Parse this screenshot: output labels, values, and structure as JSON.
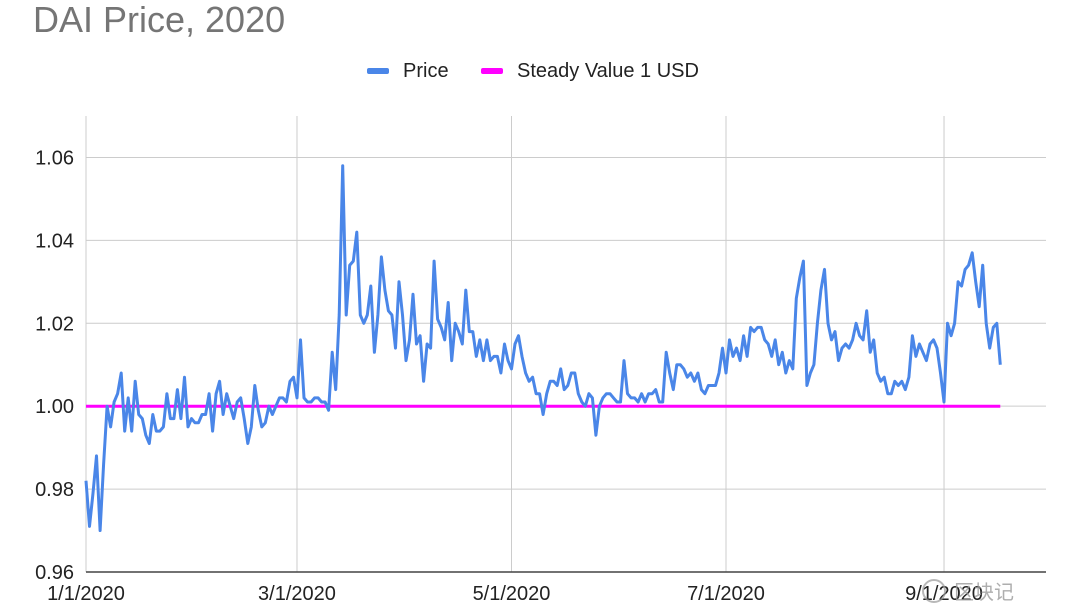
{
  "chart_data": {
    "type": "line",
    "title": "DAI Price, 2020",
    "xlabel": "",
    "ylabel": "",
    "ylim": [
      0.96,
      1.07
    ],
    "yticks": [
      "0.96",
      "0.98",
      "1.00",
      "1.02",
      "1.04",
      "1.06"
    ],
    "xticks": [
      "1/1/2020",
      "3/1/2020",
      "5/1/2020",
      "7/1/2020",
      "9/1/2020"
    ],
    "xlim": [
      "2020-01-01",
      "2020-09-30"
    ],
    "grid": true,
    "legend_position": "top",
    "series": [
      {
        "name": "Price",
        "color": "#4a86e8",
        "points": [
          [
            "2020-01-01",
            0.982
          ],
          [
            "2020-01-02",
            0.971
          ],
          [
            "2020-01-03",
            0.979
          ],
          [
            "2020-01-04",
            0.988
          ],
          [
            "2020-01-05",
            0.97
          ],
          [
            "2020-01-06",
            0.986
          ],
          [
            "2020-01-07",
            1.0
          ],
          [
            "2020-01-08",
            0.995
          ],
          [
            "2020-01-09",
            1.001
          ],
          [
            "2020-01-10",
            1.003
          ],
          [
            "2020-01-11",
            1.008
          ],
          [
            "2020-01-12",
            0.994
          ],
          [
            "2020-01-13",
            1.002
          ],
          [
            "2020-01-14",
            0.994
          ],
          [
            "2020-01-15",
            1.006
          ],
          [
            "2020-01-16",
            0.998
          ],
          [
            "2020-01-17",
            0.997
          ],
          [
            "2020-01-18",
            0.993
          ],
          [
            "2020-01-19",
            0.991
          ],
          [
            "2020-01-20",
            0.998
          ],
          [
            "2020-01-21",
            0.994
          ],
          [
            "2020-01-22",
            0.994
          ],
          [
            "2020-01-23",
            0.995
          ],
          [
            "2020-01-24",
            1.003
          ],
          [
            "2020-01-25",
            0.997
          ],
          [
            "2020-01-26",
            0.997
          ],
          [
            "2020-01-27",
            1.004
          ],
          [
            "2020-01-28",
            0.997
          ],
          [
            "2020-01-29",
            1.007
          ],
          [
            "2020-01-30",
            0.995
          ],
          [
            "2020-01-31",
            0.997
          ],
          [
            "2020-02-01",
            0.996
          ],
          [
            "2020-02-02",
            0.996
          ],
          [
            "2020-02-03",
            0.998
          ],
          [
            "2020-02-04",
            0.998
          ],
          [
            "2020-02-05",
            1.003
          ],
          [
            "2020-02-06",
            0.994
          ],
          [
            "2020-02-07",
            1.003
          ],
          [
            "2020-02-08",
            1.006
          ],
          [
            "2020-02-09",
            0.998
          ],
          [
            "2020-02-10",
            1.003
          ],
          [
            "2020-02-11",
            1.0
          ],
          [
            "2020-02-12",
            0.997
          ],
          [
            "2020-02-13",
            1.001
          ],
          [
            "2020-02-14",
            1.002
          ],
          [
            "2020-02-15",
            0.997
          ],
          [
            "2020-02-16",
            0.991
          ],
          [
            "2020-02-17",
            0.995
          ],
          [
            "2020-02-18",
            1.005
          ],
          [
            "2020-02-19",
            0.999
          ],
          [
            "2020-02-20",
            0.995
          ],
          [
            "2020-02-21",
            0.996
          ],
          [
            "2020-02-22",
            1.0
          ],
          [
            "2020-02-23",
            0.998
          ],
          [
            "2020-02-24",
            1.0
          ],
          [
            "2020-02-25",
            1.002
          ],
          [
            "2020-02-26",
            1.002
          ],
          [
            "2020-02-27",
            1.001
          ],
          [
            "2020-02-28",
            1.006
          ],
          [
            "2020-02-29",
            1.007
          ],
          [
            "2020-03-01",
            1.002
          ],
          [
            "2020-03-02",
            1.016
          ],
          [
            "2020-03-03",
            1.002
          ],
          [
            "2020-03-04",
            1.001
          ],
          [
            "2020-03-05",
            1.001
          ],
          [
            "2020-03-06",
            1.002
          ],
          [
            "2020-03-07",
            1.002
          ],
          [
            "2020-03-08",
            1.001
          ],
          [
            "2020-03-09",
            1.001
          ],
          [
            "2020-03-10",
            0.999
          ],
          [
            "2020-03-11",
            1.013
          ],
          [
            "2020-03-12",
            1.004
          ],
          [
            "2020-03-13",
            1.022
          ],
          [
            "2020-03-14",
            1.058
          ],
          [
            "2020-03-15",
            1.022
          ],
          [
            "2020-03-16",
            1.034
          ],
          [
            "2020-03-17",
            1.035
          ],
          [
            "2020-03-18",
            1.042
          ],
          [
            "2020-03-19",
            1.022
          ],
          [
            "2020-03-20",
            1.02
          ],
          [
            "2020-03-21",
            1.022
          ],
          [
            "2020-03-22",
            1.029
          ],
          [
            "2020-03-23",
            1.013
          ],
          [
            "2020-03-24",
            1.022
          ],
          [
            "2020-03-25",
            1.036
          ],
          [
            "2020-03-26",
            1.028
          ],
          [
            "2020-03-27",
            1.023
          ],
          [
            "2020-03-28",
            1.022
          ],
          [
            "2020-03-29",
            1.014
          ],
          [
            "2020-03-30",
            1.03
          ],
          [
            "2020-03-31",
            1.022
          ],
          [
            "2020-04-01",
            1.011
          ],
          [
            "2020-04-02",
            1.016
          ],
          [
            "2020-04-03",
            1.027
          ],
          [
            "2020-04-04",
            1.015
          ],
          [
            "2020-04-05",
            1.017
          ],
          [
            "2020-04-06",
            1.006
          ],
          [
            "2020-04-07",
            1.015
          ],
          [
            "2020-04-08",
            1.014
          ],
          [
            "2020-04-09",
            1.035
          ],
          [
            "2020-04-10",
            1.021
          ],
          [
            "2020-04-11",
            1.019
          ],
          [
            "2020-04-12",
            1.016
          ],
          [
            "2020-04-13",
            1.025
          ],
          [
            "2020-04-14",
            1.011
          ],
          [
            "2020-04-15",
            1.02
          ],
          [
            "2020-04-16",
            1.018
          ],
          [
            "2020-04-17",
            1.015
          ],
          [
            "2020-04-18",
            1.028
          ],
          [
            "2020-04-19",
            1.018
          ],
          [
            "2020-04-20",
            1.018
          ],
          [
            "2020-04-21",
            1.012
          ],
          [
            "2020-04-22",
            1.016
          ],
          [
            "2020-04-23",
            1.011
          ],
          [
            "2020-04-24",
            1.016
          ],
          [
            "2020-04-25",
            1.011
          ],
          [
            "2020-04-26",
            1.012
          ],
          [
            "2020-04-27",
            1.012
          ],
          [
            "2020-04-28",
            1.008
          ],
          [
            "2020-04-29",
            1.015
          ],
          [
            "2020-04-30",
            1.011
          ],
          [
            "2020-05-01",
            1.009
          ],
          [
            "2020-05-02",
            1.015
          ],
          [
            "2020-05-03",
            1.017
          ],
          [
            "2020-05-04",
            1.012
          ],
          [
            "2020-05-05",
            1.008
          ],
          [
            "2020-05-06",
            1.006
          ],
          [
            "2020-05-07",
            1.007
          ],
          [
            "2020-05-08",
            1.003
          ],
          [
            "2020-05-09",
            1.003
          ],
          [
            "2020-05-10",
            0.998
          ],
          [
            "2020-05-11",
            1.003
          ],
          [
            "2020-05-12",
            1.006
          ],
          [
            "2020-05-13",
            1.006
          ],
          [
            "2020-05-14",
            1.005
          ],
          [
            "2020-05-15",
            1.009
          ],
          [
            "2020-05-16",
            1.004
          ],
          [
            "2020-05-17",
            1.005
          ],
          [
            "2020-05-18",
            1.008
          ],
          [
            "2020-05-19",
            1.008
          ],
          [
            "2020-05-20",
            1.003
          ],
          [
            "2020-05-21",
            1.001
          ],
          [
            "2020-05-22",
            1.0
          ],
          [
            "2020-05-23",
            1.003
          ],
          [
            "2020-05-24",
            1.002
          ],
          [
            "2020-05-25",
            0.993
          ],
          [
            "2020-05-26",
            1.0
          ],
          [
            "2020-05-27",
            1.002
          ],
          [
            "2020-05-28",
            1.003
          ],
          [
            "2020-05-29",
            1.003
          ],
          [
            "2020-05-30",
            1.002
          ],
          [
            "2020-05-31",
            1.001
          ],
          [
            "2020-06-01",
            1.001
          ],
          [
            "2020-06-02",
            1.011
          ],
          [
            "2020-06-03",
            1.003
          ],
          [
            "2020-06-04",
            1.002
          ],
          [
            "2020-06-05",
            1.002
          ],
          [
            "2020-06-06",
            1.001
          ],
          [
            "2020-06-07",
            1.003
          ],
          [
            "2020-06-08",
            1.001
          ],
          [
            "2020-06-09",
            1.003
          ],
          [
            "2020-06-10",
            1.003
          ],
          [
            "2020-06-11",
            1.004
          ],
          [
            "2020-06-12",
            1.001
          ],
          [
            "2020-06-13",
            1.001
          ],
          [
            "2020-06-14",
            1.013
          ],
          [
            "2020-06-15",
            1.008
          ],
          [
            "2020-06-16",
            1.004
          ],
          [
            "2020-06-17",
            1.01
          ],
          [
            "2020-06-18",
            1.01
          ],
          [
            "2020-06-19",
            1.009
          ],
          [
            "2020-06-20",
            1.007
          ],
          [
            "2020-06-21",
            1.008
          ],
          [
            "2020-06-22",
            1.006
          ],
          [
            "2020-06-23",
            1.008
          ],
          [
            "2020-06-24",
            1.004
          ],
          [
            "2020-06-25",
            1.003
          ],
          [
            "2020-06-26",
            1.005
          ],
          [
            "2020-06-27",
            1.005
          ],
          [
            "2020-06-28",
            1.005
          ],
          [
            "2020-06-29",
            1.008
          ],
          [
            "2020-06-30",
            1.014
          ],
          [
            "2020-07-01",
            1.008
          ],
          [
            "2020-07-02",
            1.016
          ],
          [
            "2020-07-03",
            1.012
          ],
          [
            "2020-07-04",
            1.014
          ],
          [
            "2020-07-05",
            1.011
          ],
          [
            "2020-07-06",
            1.017
          ],
          [
            "2020-07-07",
            1.012
          ],
          [
            "2020-07-08",
            1.019
          ],
          [
            "2020-07-09",
            1.018
          ],
          [
            "2020-07-10",
            1.019
          ],
          [
            "2020-07-11",
            1.019
          ],
          [
            "2020-07-12",
            1.016
          ],
          [
            "2020-07-13",
            1.015
          ],
          [
            "2020-07-14",
            1.012
          ],
          [
            "2020-07-15",
            1.016
          ],
          [
            "2020-07-16",
            1.01
          ],
          [
            "2020-07-17",
            1.013
          ],
          [
            "2020-07-18",
            1.008
          ],
          [
            "2020-07-19",
            1.011
          ],
          [
            "2020-07-20",
            1.009
          ],
          [
            "2020-07-21",
            1.026
          ],
          [
            "2020-07-22",
            1.031
          ],
          [
            "2020-07-23",
            1.035
          ],
          [
            "2020-07-24",
            1.005
          ],
          [
            "2020-07-25",
            1.008
          ],
          [
            "2020-07-26",
            1.01
          ],
          [
            "2020-07-27",
            1.02
          ],
          [
            "2020-07-28",
            1.028
          ],
          [
            "2020-07-29",
            1.033
          ],
          [
            "2020-07-30",
            1.02
          ],
          [
            "2020-07-31",
            1.016
          ],
          [
            "2020-08-01",
            1.018
          ],
          [
            "2020-08-02",
            1.011
          ],
          [
            "2020-08-03",
            1.014
          ],
          [
            "2020-08-04",
            1.015
          ],
          [
            "2020-08-05",
            1.014
          ],
          [
            "2020-08-06",
            1.016
          ],
          [
            "2020-08-07",
            1.02
          ],
          [
            "2020-08-08",
            1.017
          ],
          [
            "2020-08-09",
            1.016
          ],
          [
            "2020-08-10",
            1.023
          ],
          [
            "2020-08-11",
            1.013
          ],
          [
            "2020-08-12",
            1.016
          ],
          [
            "2020-08-13",
            1.008
          ],
          [
            "2020-08-14",
            1.006
          ],
          [
            "2020-08-15",
            1.007
          ],
          [
            "2020-08-16",
            1.003
          ],
          [
            "2020-08-17",
            1.003
          ],
          [
            "2020-08-18",
            1.006
          ],
          [
            "2020-08-19",
            1.005
          ],
          [
            "2020-08-20",
            1.006
          ],
          [
            "2020-08-21",
            1.004
          ],
          [
            "2020-08-22",
            1.007
          ],
          [
            "2020-08-23",
            1.017
          ],
          [
            "2020-08-24",
            1.012
          ],
          [
            "2020-08-25",
            1.015
          ],
          [
            "2020-08-26",
            1.013
          ],
          [
            "2020-08-27",
            1.011
          ],
          [
            "2020-08-28",
            1.015
          ],
          [
            "2020-08-29",
            1.016
          ],
          [
            "2020-08-30",
            1.014
          ],
          [
            "2020-08-31",
            1.008
          ],
          [
            "2020-09-01",
            1.001
          ],
          [
            "2020-09-02",
            1.02
          ],
          [
            "2020-09-03",
            1.017
          ],
          [
            "2020-09-04",
            1.02
          ],
          [
            "2020-09-05",
            1.03
          ],
          [
            "2020-09-06",
            1.029
          ],
          [
            "2020-09-07",
            1.033
          ],
          [
            "2020-09-08",
            1.034
          ],
          [
            "2020-09-09",
            1.037
          ],
          [
            "2020-09-10",
            1.03
          ],
          [
            "2020-09-11",
            1.024
          ],
          [
            "2020-09-12",
            1.034
          ],
          [
            "2020-09-13",
            1.02
          ],
          [
            "2020-09-14",
            1.014
          ],
          [
            "2020-09-15",
            1.019
          ],
          [
            "2020-09-16",
            1.02
          ],
          [
            "2020-09-17",
            1.01
          ]
        ]
      },
      {
        "name": "Steady Value 1 USD",
        "color": "#ff00ff",
        "points": [
          [
            "2020-01-01",
            1.0
          ],
          [
            "2020-09-17",
            1.0
          ]
        ]
      }
    ]
  },
  "watermark": {
    "text": "区块记",
    "icon": "wechat-icon"
  }
}
